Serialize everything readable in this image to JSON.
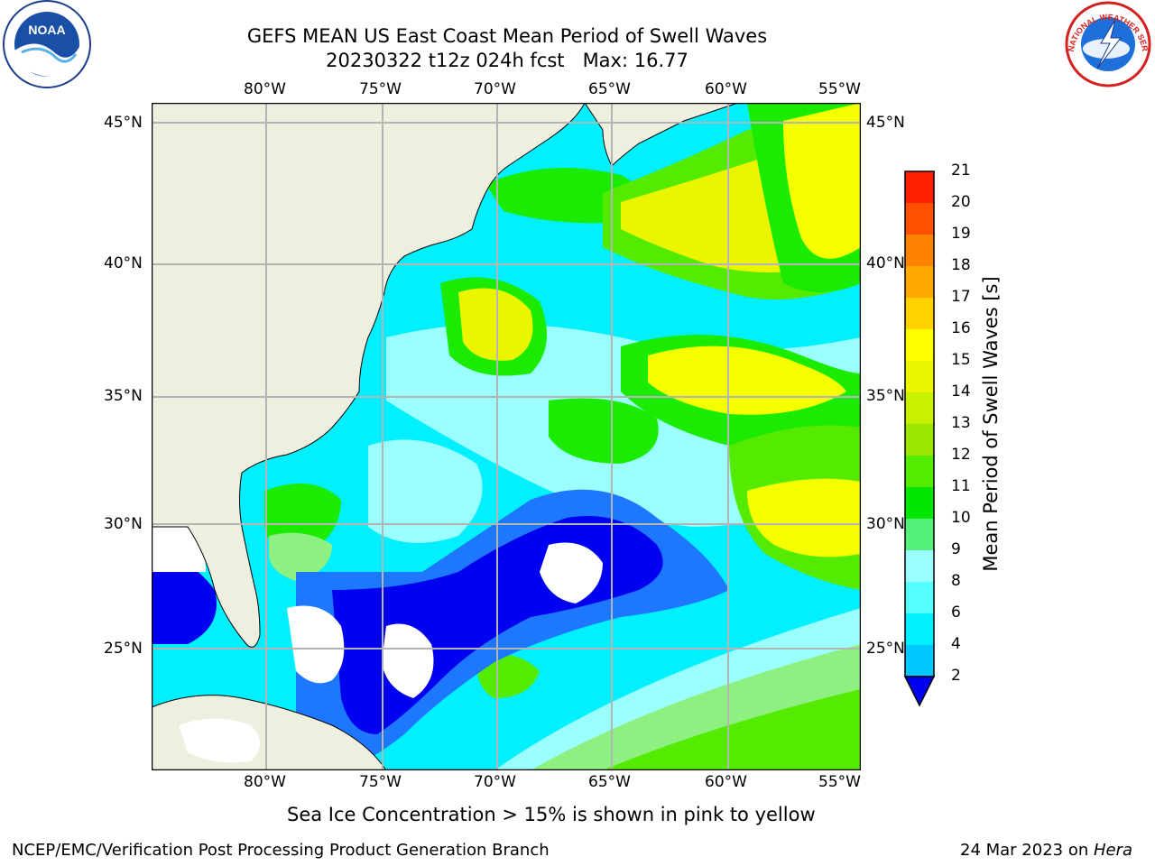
{
  "header": {
    "title_line1": "GEFS MEAN US East Coast Mean Period of Swell Waves",
    "title_line2": "20230322 t12z 024h fcst   Max: 16.77"
  },
  "logos": {
    "left": {
      "name": "noaa-logo",
      "text": "NOAA"
    },
    "right": {
      "name": "nws-logo",
      "text": "NATIONAL WEATHER SERVICE"
    }
  },
  "map": {
    "lon_labels": [
      "80°W",
      "75°W",
      "70°W",
      "65°W",
      "60°W",
      "55°W"
    ],
    "lat_labels": [
      "45°N",
      "40°N",
      "35°N",
      "30°N",
      "25°N"
    ],
    "land_color": "#efefdf",
    "water_colors": {
      "cyan": "#00f0ff",
      "light_cyan": "#9cffff",
      "green": "#1aeb00",
      "light_green": "#8ef080",
      "yellow": "#f5ff00",
      "blue": "#1e78ff",
      "dark_blue": "#0000f0"
    }
  },
  "colorbar": {
    "label": "Mean Period of Swell Waves [s]",
    "ticks": [
      "2",
      "4",
      "6",
      "8",
      "9",
      "10",
      "11",
      "12",
      "13",
      "14",
      "15",
      "16",
      "17",
      "18",
      "19",
      "20",
      "21"
    ],
    "colors": [
      "#0a64ff",
      "#00c8ff",
      "#00f0ff",
      "#55ffff",
      "#9cffff",
      "#55f07a",
      "#00e600",
      "#55eb00",
      "#9be600",
      "#c8f000",
      "#ebf500",
      "#ffff00",
      "#ffd200",
      "#ffaa00",
      "#ff8200",
      "#ff5000",
      "#ff2000",
      "#ff0000"
    ],
    "extend_color": "#0000f0"
  },
  "footer": {
    "note": "Sea Ice Concentration > 15% is shown in pink to yellow",
    "left": "NCEP/EMC/Verification Post Processing Product Generation Branch",
    "right_date": "24 Mar 2023 on ",
    "right_host": "Hera"
  }
}
